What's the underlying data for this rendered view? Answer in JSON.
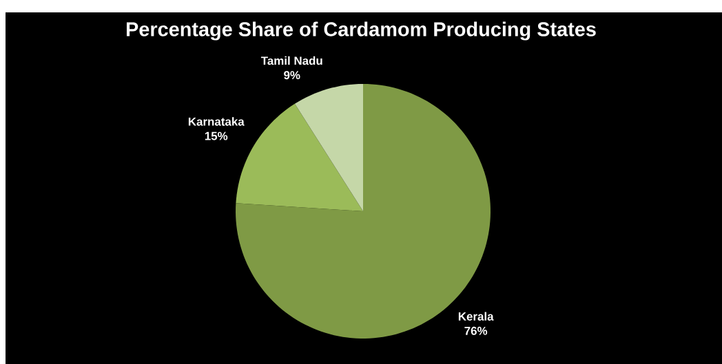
{
  "chart_data": {
    "type": "pie",
    "title": "Percentage Share of Cardamom Producing States",
    "categories": [
      "Kerala",
      "Karnataka",
      "Tamil Nadu"
    ],
    "values": [
      76,
      15,
      9
    ],
    "colors": [
      "#7f9a45",
      "#9bbb59",
      "#c5d7a8"
    ],
    "value_labels": [
      "76%",
      "15%",
      "9%"
    ]
  }
}
